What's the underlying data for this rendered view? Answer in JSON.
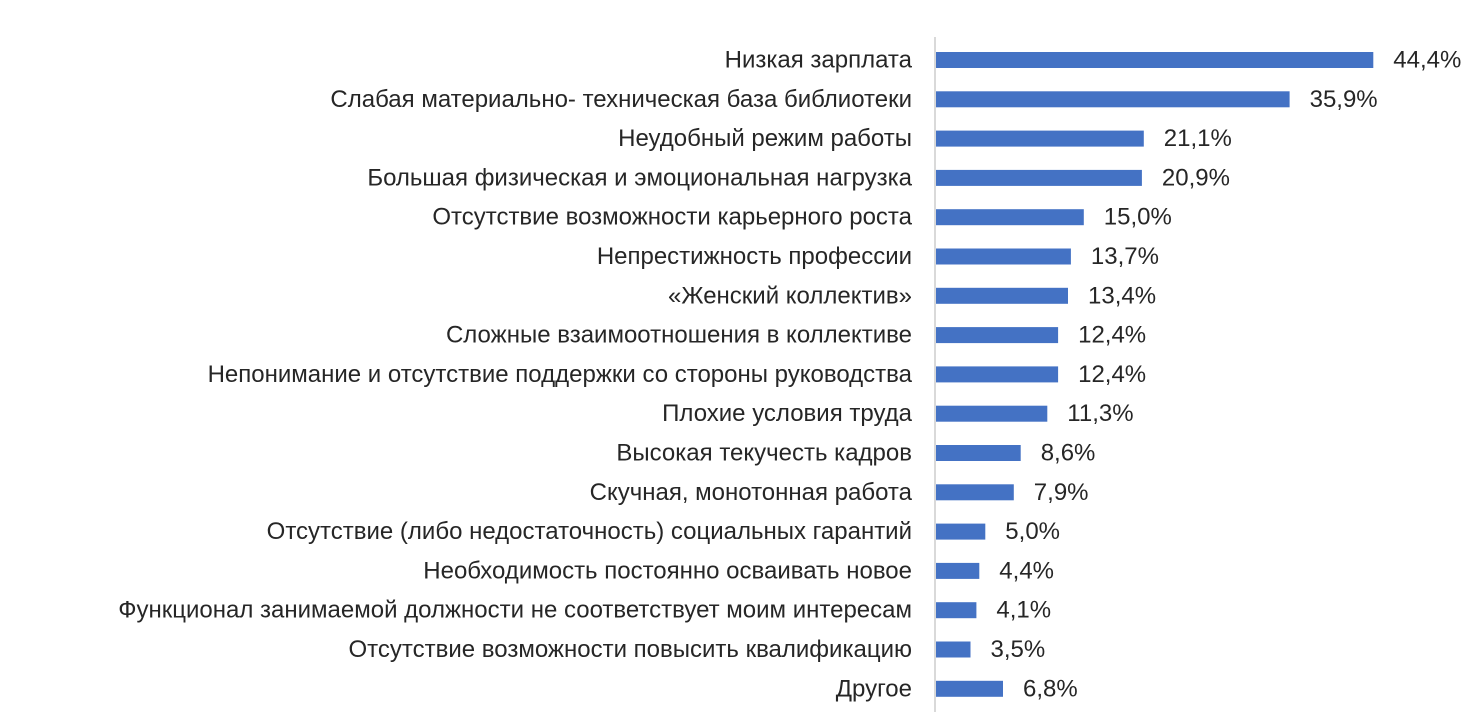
{
  "chart_data": {
    "type": "bar",
    "orientation": "horizontal",
    "title": "",
    "xlabel": "",
    "ylabel": "",
    "value_suffix": "%",
    "decimal_separator": ",",
    "grid": false,
    "legend": "none",
    "bar_color": "#4472C4",
    "axis_color": "#d9d9d9",
    "xlim": [
      0,
      48
    ],
    "categories": [
      "Низкая зарплата",
      "Слабая материально- техническая база библиотеки",
      "Неудобный режим работы",
      "Большая физическая и эмоциональная нагрузка",
      "Отсутствие возможности карьерного роста",
      "Непрестижность профессии",
      "«Женский коллектив»",
      "Сложные взаимоотношения в коллективе",
      "Непонимание и отсутствие поддержки со стороны руководства",
      "Плохие условия труда",
      "Высокая текучесть кадров",
      "Скучная, монотонная работа",
      "Отсутствие (либо недостаточность) социальных гарантий",
      "Необходимость постоянно осваивать новое",
      "Функционал занимаемой должности не соответствует моим интересам",
      "Отсутствие возможности повысить квалификацию",
      "Другое"
    ],
    "values": [
      44.4,
      35.9,
      21.1,
      20.9,
      15.0,
      13.7,
      13.4,
      12.4,
      12.4,
      11.3,
      8.6,
      7.9,
      5.0,
      4.4,
      4.1,
      3.5,
      6.8
    ],
    "data_labels": [
      "44,4%",
      "35,9%",
      "21,1%",
      "20,9%",
      "15,0%",
      "13,7%",
      "13,4%",
      "12,4%",
      "12,4%",
      "11,3%",
      "8,6%",
      "7,9%",
      "5,0%",
      "4,4%",
      "4,1%",
      "3,5%",
      "6,8%"
    ]
  }
}
